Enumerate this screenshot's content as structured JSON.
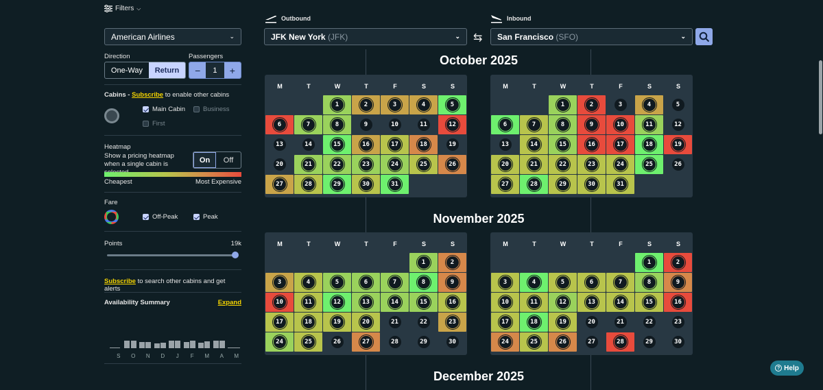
{
  "filters_label": "Filters",
  "airline": "American Airlines",
  "direction": {
    "label": "Direction",
    "one_way": "One-Way",
    "return": "Return",
    "selected": "Return"
  },
  "passengers": {
    "label": "Passengers",
    "value": "1",
    "minus": "−",
    "plus": "+"
  },
  "cabins": {
    "prefix": "Cabins - ",
    "subscribe": "Subscribe",
    "suffix": " to enable other cabins",
    "main": "Main Cabin",
    "business": "Business",
    "first": "First"
  },
  "heatmap": {
    "label": "Heatmap",
    "desc": "Show a pricing heatmap when a single cabin is selected.",
    "on": "On",
    "off": "Off",
    "cheapest": "Cheapest",
    "most_expensive": "Most Expensive"
  },
  "fare": {
    "label": "Fare",
    "off_peak": "Off-Peak",
    "peak": "Peak"
  },
  "points": {
    "label": "Points",
    "value": "19k",
    "slider_fraction": 1.0
  },
  "subscribe_alert": {
    "link": "Subscribe",
    "text": " to search other cabins and get alerts"
  },
  "availability": {
    "label": "Availability Summary",
    "expand": "Expand",
    "months": [
      "S",
      "O",
      "N",
      "D",
      "J",
      "F",
      "M",
      "A",
      "M"
    ]
  },
  "outbound": {
    "label": "Outbound",
    "city": "JFK New York",
    "code": "(JFK)"
  },
  "inbound": {
    "label": "Inbound",
    "city": "San Francisco",
    "code": "(SFO)"
  },
  "dow": [
    "M",
    "T",
    "W",
    "T",
    "F",
    "S",
    "S"
  ],
  "colors": {
    "green_bright": "#6ef06e",
    "green": "#9ad25c",
    "olive": "#b8c44c",
    "gold": "#c9a449",
    "orange": "#d6884a",
    "red": "#e84b3c",
    "dark": "#101a20"
  },
  "months": [
    {
      "title": "October 2025",
      "outbound": {
        "offset": 2,
        "days": 31,
        "heat": {
          "1": "green",
          "2": "gold",
          "3": "gold",
          "4": "gold",
          "5": "green_bright",
          "6": "red",
          "7": "green",
          "8": "green",
          "12": "red",
          "15": "green_bright",
          "16": "gold",
          "17": "olive",
          "18": "orange",
          "21": "green",
          "22": "green",
          "23": "green",
          "24": "green",
          "25": "olive",
          "26": "orange",
          "27": "gold",
          "28": "olive",
          "29": "green_bright",
          "30": "olive",
          "31": "green_bright"
        }
      },
      "inbound": {
        "offset": 2,
        "days": 31,
        "heat": {
          "1": "green",
          "2": "red",
          "4": "gold",
          "6": "green_bright",
          "7": "olive",
          "8": "green",
          "9": "red",
          "10": "red",
          "11": "green",
          "14": "olive",
          "15": "green",
          "16": "red",
          "17": "red",
          "18": "green_bright",
          "19": "red",
          "20": "olive",
          "21": "olive",
          "22": "olive",
          "23": "olive",
          "24": "olive",
          "25": "green_bright",
          "27": "olive",
          "28": "green_bright",
          "29": "olive",
          "30": "olive",
          "31": "olive"
        }
      }
    },
    {
      "title": "November 2025",
      "outbound": {
        "offset": 5,
        "days": 30,
        "heat": {
          "1": "green",
          "2": "orange",
          "3": "gold",
          "4": "olive",
          "5": "green",
          "6": "green",
          "7": "green",
          "8": "green_bright",
          "9": "orange",
          "10": "red",
          "11": "olive",
          "12": "green_bright",
          "13": "green",
          "14": "green",
          "15": "green",
          "16": "olive",
          "17": "olive",
          "18": "olive",
          "19": "olive",
          "20": "olive",
          "23": "gold",
          "24": "green",
          "25": "olive",
          "27": "orange"
        }
      },
      "inbound": {
        "offset": 5,
        "days": 30,
        "heat": {
          "1": "green_bright",
          "2": "red",
          "3": "olive",
          "4": "green_bright",
          "5": "olive",
          "6": "olive",
          "7": "olive",
          "8": "green",
          "9": "orange",
          "10": "olive",
          "11": "olive",
          "12": "green",
          "13": "olive",
          "14": "olive",
          "15": "olive",
          "16": "red",
          "17": "olive",
          "18": "green_bright",
          "19": "olive",
          "24": "orange",
          "25": "olive",
          "26": "orange",
          "28": "red"
        }
      }
    },
    {
      "title": "December 2025"
    }
  ],
  "help": "Help"
}
